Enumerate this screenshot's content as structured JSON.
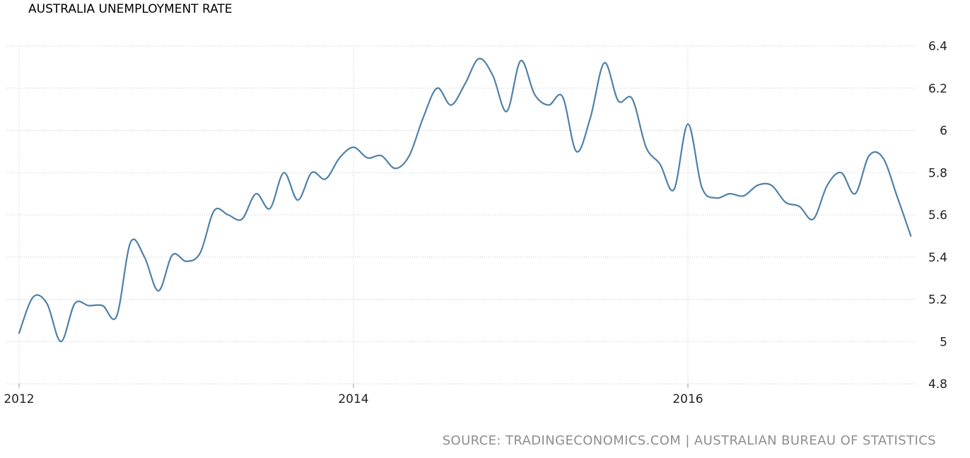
{
  "chart_data": {
    "type": "line",
    "title": "AUSTRALIA UNEMPLOYMENT RATE",
    "xlabel": "",
    "ylabel": "",
    "x_tick_labels": [
      "2012",
      "2014",
      "2016"
    ],
    "y_tick_labels": [
      "4.8",
      "5",
      "5.2",
      "5.4",
      "5.6",
      "5.8",
      "6",
      "6.2",
      "6.4"
    ],
    "xlim": [
      "2012-01",
      "2017-05"
    ],
    "ylim": [
      4.8,
      6.4
    ],
    "grid": true,
    "legend": "none",
    "series": [
      {
        "color": "#4f81a8",
        "x": [
          "2012-01",
          "2012-02",
          "2012-03",
          "2012-04",
          "2012-05",
          "2012-06",
          "2012-07",
          "2012-08",
          "2012-09",
          "2012-10",
          "2012-11",
          "2012-12",
          "2013-01",
          "2013-02",
          "2013-03",
          "2013-04",
          "2013-05",
          "2013-06",
          "2013-07",
          "2013-08",
          "2013-09",
          "2013-10",
          "2013-11",
          "2013-12",
          "2014-01",
          "2014-02",
          "2014-03",
          "2014-04",
          "2014-05",
          "2014-06",
          "2014-07",
          "2014-08",
          "2014-09",
          "2014-10",
          "2014-11",
          "2014-12",
          "2015-01",
          "2015-02",
          "2015-03",
          "2015-04",
          "2015-05",
          "2015-06",
          "2015-07",
          "2015-08",
          "2015-09",
          "2015-10",
          "2015-11",
          "2015-12",
          "2016-01",
          "2016-02",
          "2016-03",
          "2016-04",
          "2016-05",
          "2016-06",
          "2016-07",
          "2016-08",
          "2016-09",
          "2016-10",
          "2016-11",
          "2016-12",
          "2017-01",
          "2017-02",
          "2017-03",
          "2017-04",
          "2017-05"
        ],
        "values": [
          5.04,
          5.21,
          5.18,
          5.0,
          5.18,
          5.17,
          5.17,
          5.12,
          5.47,
          5.4,
          5.24,
          5.41,
          5.38,
          5.42,
          5.62,
          5.6,
          5.58,
          5.7,
          5.63,
          5.8,
          5.67,
          5.8,
          5.77,
          5.87,
          5.92,
          5.87,
          5.88,
          5.82,
          5.88,
          6.06,
          6.2,
          6.12,
          6.22,
          6.34,
          6.26,
          6.09,
          6.33,
          6.17,
          6.12,
          6.16,
          5.9,
          6.06,
          6.32,
          6.14,
          6.15,
          5.92,
          5.84,
          5.72,
          6.03,
          5.73,
          5.68,
          5.7,
          5.69,
          5.74,
          5.74,
          5.66,
          5.64,
          5.58,
          5.74,
          5.8,
          5.7,
          5.88,
          5.87,
          5.69,
          5.5
        ]
      }
    ]
  },
  "source_text": "SOURCE: TRADINGECONOMICS.COM | AUSTRALIAN BUREAU OF STATISTICS"
}
